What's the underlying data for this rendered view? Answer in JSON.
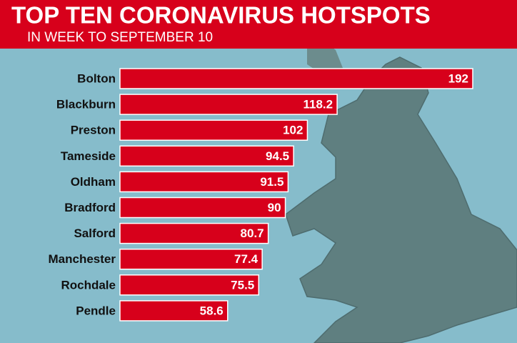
{
  "chart_data": {
    "type": "bar",
    "orientation": "horizontal",
    "title": "TOP TEN CORONAVIRUS HOTSPOTS",
    "subtitle": "IN WEEK TO SEPTEMBER 10",
    "categories": [
      "Bolton",
      "Blackburn",
      "Preston",
      "Tameside",
      "Oldham",
      "Bradford",
      "Salford",
      "Manchester",
      "Rochdale",
      "Pendle"
    ],
    "values": [
      192,
      118.2,
      102,
      94.5,
      91.5,
      90,
      80.7,
      77.4,
      75.5,
      58.6
    ],
    "color": "#d7001b"
  }
}
